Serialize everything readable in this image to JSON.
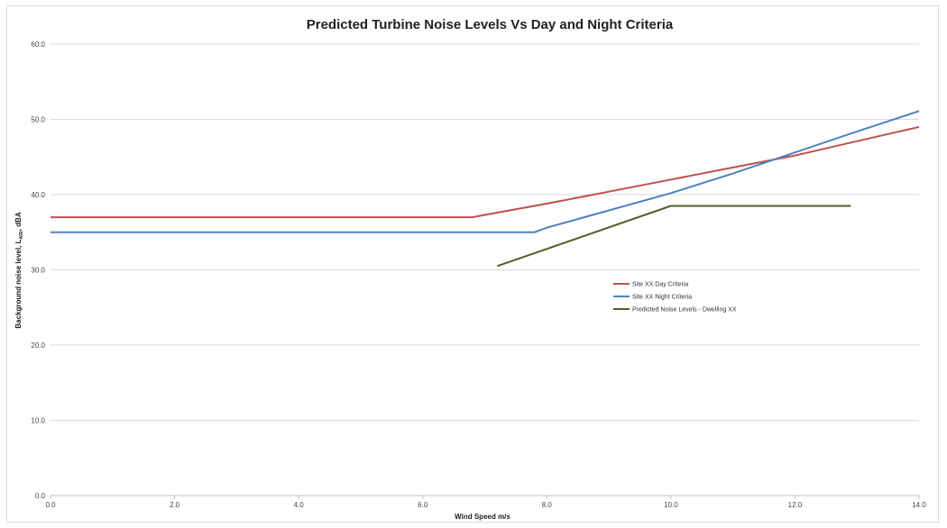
{
  "chart_data": {
    "type": "line",
    "title": "Predicted Turbine Noise Levels Vs Day and Night Criteria",
    "xlabel": "Wind Speed m/s",
    "ylabel_parts": {
      "main": "Background noise level, L",
      "sub": "A90",
      "tail": ", dBA"
    },
    "xlim": [
      0,
      14
    ],
    "ylim": [
      0,
      60
    ],
    "xticks": [
      "0.0",
      "2.0",
      "4.0",
      "6.0",
      "8.0",
      "10.0",
      "12.0",
      "14.0"
    ],
    "yticks": [
      "0.0",
      "10.0",
      "20.0",
      "30.0",
      "40.0",
      "50.0",
      "60.0"
    ],
    "grid": "horizontal",
    "legend_position": "center-right",
    "series": [
      {
        "name": "Site XX Day Criteria",
        "color": "#c0504d",
        "x": [
          0,
          6.8,
          7,
          8,
          9,
          10,
          11,
          12,
          13,
          14
        ],
        "y": [
          37,
          37,
          37.3,
          38.8,
          40.4,
          42.0,
          43.6,
          45.2,
          47.1,
          49.0
        ]
      },
      {
        "name": "Site XX Night Criteria",
        "color": "#4f81bd",
        "x": [
          0,
          7.8,
          8,
          9,
          10,
          11,
          12,
          13,
          14
        ],
        "y": [
          35,
          35,
          35.6,
          37.9,
          40.2,
          42.8,
          45.6,
          48.4,
          51.1
        ]
      },
      {
        "name": "Predicted Noise Levels - Dwelling XX",
        "color": "#4f6228",
        "x": [
          7.2,
          10,
          12.9
        ],
        "y": [
          30.5,
          38.5,
          38.5
        ]
      }
    ]
  }
}
